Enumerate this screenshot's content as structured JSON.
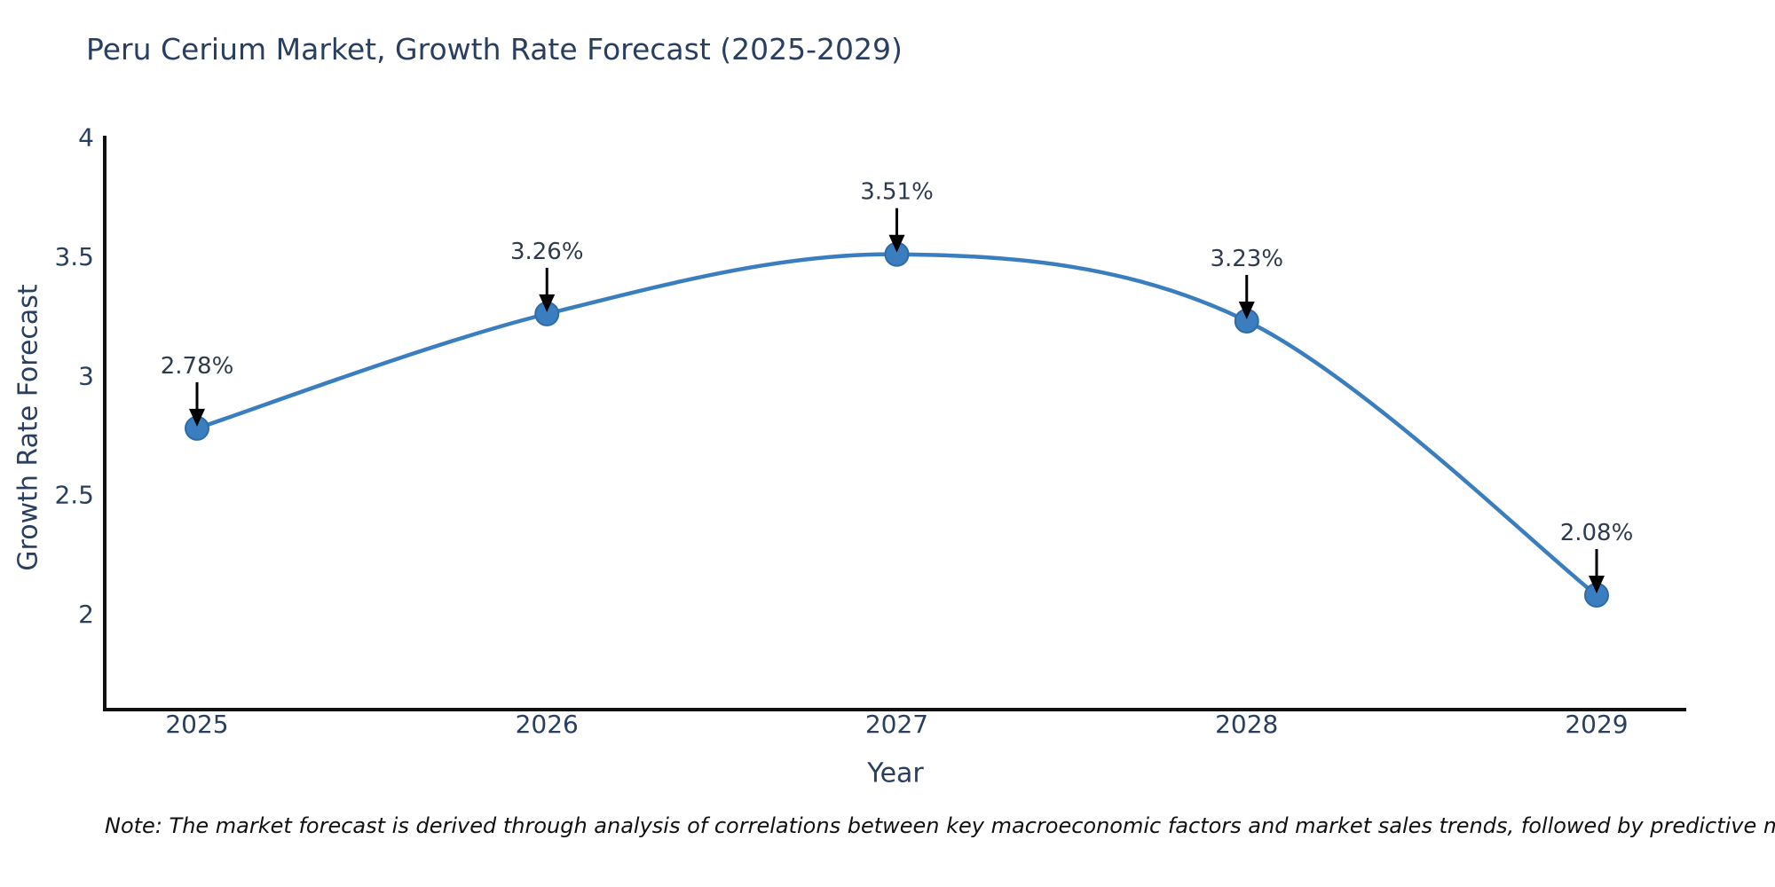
{
  "title": {
    "text": "Peru Cerium Market, Growth Rate Forecast (2025-2029)",
    "color": "#2a3f5f"
  },
  "x_axis": {
    "title": "Year",
    "tick_labels": [
      "2025",
      "2026",
      "2027",
      "2028",
      "2029"
    ]
  },
  "y_axis": {
    "title": "Growth Rate Forecast",
    "tick_labels": [
      "4",
      "3.5",
      "3",
      "2.5",
      "2"
    ]
  },
  "note": {
    "text": "Note: The market forecast is derived through analysis of correlations between key macroeconomic factors and market sales trends, followed by predictive modeling to project future sales"
  },
  "chart_data": {
    "type": "line",
    "line_shape": "spline",
    "title": "Peru Cerium Market, Growth Rate Forecast (2025-2029)",
    "xlabel": "Year",
    "ylabel": "Growth Rate Forecast",
    "categories": [
      "2025",
      "2026",
      "2027",
      "2028",
      "2029"
    ],
    "values": [
      2.78,
      3.26,
      3.51,
      3.23,
      2.08
    ],
    "point_labels": [
      "2.78%",
      "3.26%",
      "3.51%",
      "3.23%",
      "2.08%"
    ],
    "ylim": [
      1.6,
      4.0
    ],
    "yticks": [
      4,
      3.5,
      3,
      2.5,
      2
    ],
    "grid": false,
    "legend": false,
    "markers": true,
    "annotations_with_arrows": true,
    "colors": {
      "line": "#3a7ebf",
      "marker": "#3a7ebf",
      "marker_edge": "#2f6ba8",
      "axis_line": "#101010",
      "arrow": "#000000",
      "annotation_text": "#2f3a4d",
      "tick_text": "#2a3f5f",
      "title_text": "#2a3f5f"
    }
  }
}
